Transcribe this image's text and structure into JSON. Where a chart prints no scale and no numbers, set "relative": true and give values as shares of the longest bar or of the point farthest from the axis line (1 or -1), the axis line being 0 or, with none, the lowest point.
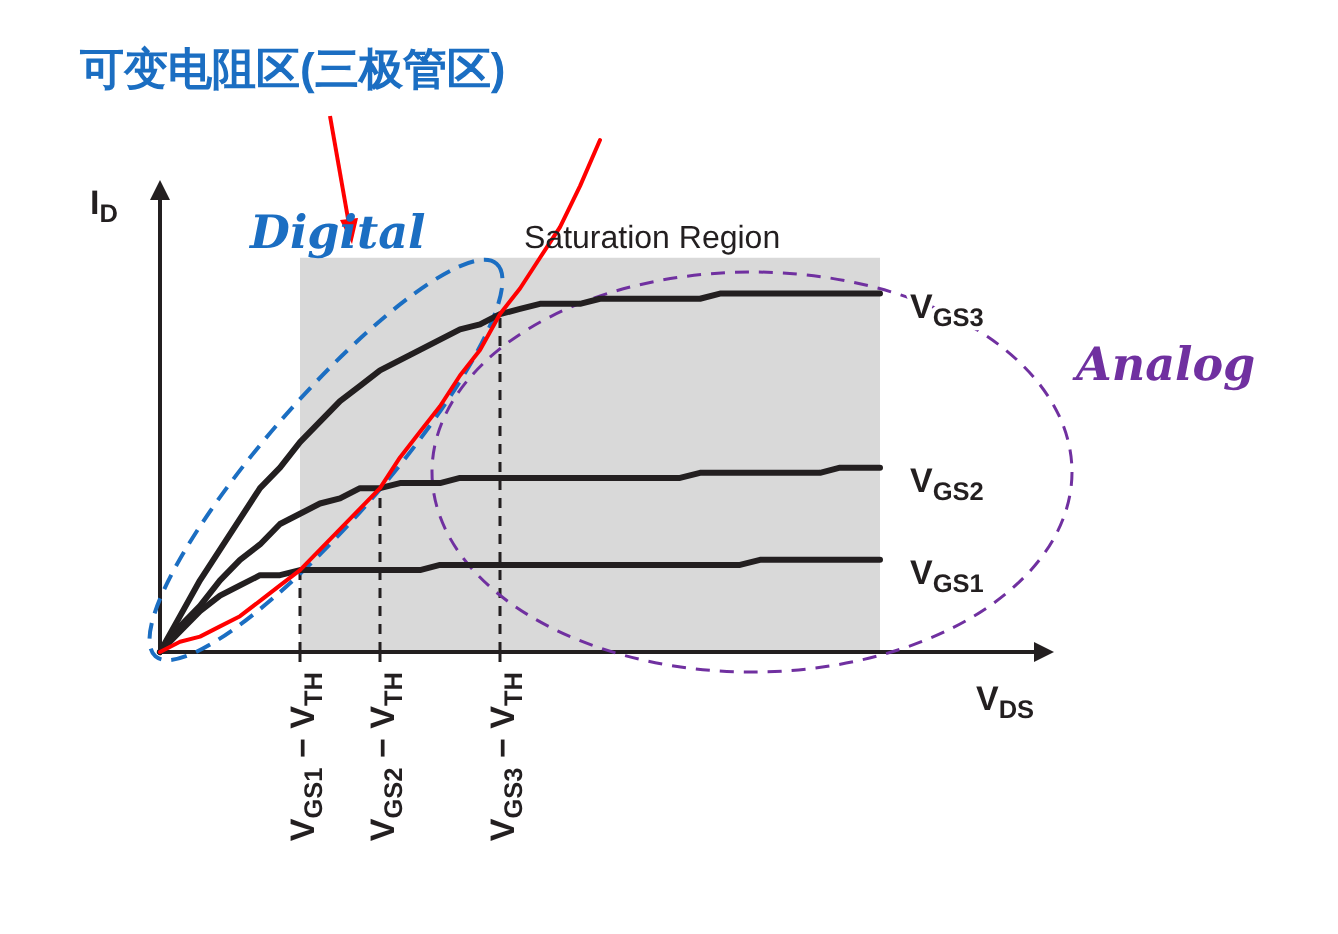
{
  "chart_data": {
    "type": "line",
    "relative": true,
    "title": "可变电阻区(三极管区)",
    "xlabel": "V$_{DS}$",
    "ylabel": "I$_{D}$",
    "categories": [
      null,
      null,
      null,
      null,
      null,
      null,
      null,
      "V$_{GS1}$ − V$_{TH}$",
      null,
      null,
      null,
      "V$_{GS2}$ − V$_{TH}$",
      null,
      null,
      null,
      null,
      null,
      "V$_{GS3}$ − V$_{TH}$",
      null,
      null,
      null,
      null,
      null,
      null,
      null,
      null,
      null,
      null,
      null,
      null,
      null,
      null,
      null,
      null,
      null,
      null,
      null
    ],
    "tick_labels": "x",
    "marker": "none",
    "line_style": "solid",
    "ref_lines": [
      {
        "axis": "x",
        "value": "V$_{GS1}$ − V$_{TH}$",
        "line_style": "dashed",
        "color": "#231f20"
      },
      {
        "axis": "x",
        "value": "V$_{GS2}$ − V$_{TH}$",
        "line_style": "dashed",
        "color": "#231f20"
      },
      {
        "axis": "x",
        "value": "V$_{GS3}$ − V$_{TH}$",
        "line_style": "dashed",
        "color": "#231f20"
      }
    ],
    "annotations": [
      "Digital",
      "Saturation Region",
      "Analog"
    ],
    "series": [
      {
        "type": "area",
        "color": "#d9d9d9",
        "values": [
          null,
          null,
          null,
          null,
          null,
          null,
          null,
          0.77,
          0.77,
          0.77,
          0.77,
          0.77,
          0.77,
          0.77,
          0.77,
          0.77,
          0.77,
          0.77,
          0.77,
          0.77,
          0.77,
          0.77,
          0.77,
          0.77,
          0.77,
          0.77,
          0.77,
          0.77,
          0.77,
          0.77,
          0.77,
          0.77,
          0.77,
          0.77,
          0.77,
          0.77,
          0.77
        ]
      },
      {
        "name": "V$_{GS3}$",
        "color": "#231f20",
        "values": [
          0,
          0.07,
          0.14,
          0.2,
          0.26,
          0.32,
          0.36,
          0.41,
          0.45,
          0.49,
          0.52,
          0.55,
          0.57,
          0.59,
          0.61,
          0.63,
          0.64,
          0.66,
          0.67,
          0.68,
          0.68,
          0.68,
          0.69,
          0.69,
          0.69,
          0.69,
          0.69,
          0.69,
          0.7,
          0.7,
          0.7,
          0.7,
          0.7,
          0.7,
          0.7,
          0.7,
          0.7
        ]
      },
      {
        "name": "V$_{GS2}$",
        "color": "#231f20",
        "values": [
          0,
          0.05,
          0.09,
          0.14,
          0.18,
          0.21,
          0.25,
          0.27,
          0.29,
          0.3,
          0.32,
          0.32,
          0.33,
          0.33,
          0.33,
          0.34,
          0.34,
          0.34,
          0.34,
          0.34,
          0.34,
          0.34,
          0.34,
          0.34,
          0.34,
          0.34,
          0.34,
          0.35,
          0.35,
          0.35,
          0.35,
          0.35,
          0.35,
          0.35,
          0.36,
          0.36,
          0.36
        ]
      },
      {
        "name": "V$_{GS1}$",
        "color": "#231f20",
        "values": [
          0,
          0.04,
          0.08,
          0.11,
          0.13,
          0.15,
          0.15,
          0.16,
          0.16,
          0.16,
          0.16,
          0.16,
          0.16,
          0.16,
          0.17,
          0.17,
          0.17,
          0.17,
          0.17,
          0.17,
          0.17,
          0.17,
          0.17,
          0.17,
          0.17,
          0.17,
          0.17,
          0.17,
          0.17,
          0.17,
          0.18,
          0.18,
          0.18,
          0.18,
          0.18,
          0.18,
          0.18
        ]
      },
      {
        "color": "#ff0000",
        "values": [
          0,
          0.02,
          0.03,
          0.05,
          0.07,
          0.1,
          0.13,
          0.16,
          0.2,
          0.24,
          0.28,
          0.32,
          0.38,
          0.43,
          0.48,
          0.54,
          0.59,
          0.66,
          0.71,
          0.77,
          0.83,
          0.91,
          1.0,
          null,
          null,
          null,
          null,
          null,
          null,
          null,
          null,
          null,
          null,
          null,
          null,
          null,
          null
        ]
      }
    ]
  }
}
